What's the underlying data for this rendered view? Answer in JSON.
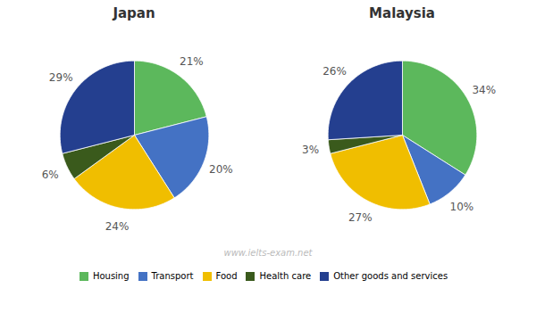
{
  "chart_data": [
    {
      "type": "pie",
      "title": "Japan",
      "categories": [
        "Housing",
        "Transport",
        "Food",
        "Health care",
        "Other goods and services"
      ],
      "values": [
        21,
        20,
        24,
        6,
        29
      ],
      "value_labels": [
        "21%",
        "20%",
        "24%",
        "6%",
        "29%"
      ],
      "colors": [
        "#5cb85c",
        "#4472c4",
        "#f0be00",
        "#3a5a1c",
        "#243f8f"
      ],
      "data_labels": true,
      "legend": "bottom",
      "annotations": [
        "www.ielts-exam.net"
      ]
    },
    {
      "type": "pie",
      "title": "Malaysia",
      "categories": [
        "Housing",
        "Transport",
        "Food",
        "Health care",
        "Other goods and services"
      ],
      "values": [
        34,
        10,
        27,
        3,
        26
      ],
      "value_labels": [
        "34%",
        "10%",
        "27%",
        "3%",
        "26%"
      ],
      "colors": [
        "#5cb85c",
        "#4472c4",
        "#f0be00",
        "#3a5a1c",
        "#243f8f"
      ],
      "data_labels": true,
      "legend": "bottom"
    }
  ]
}
